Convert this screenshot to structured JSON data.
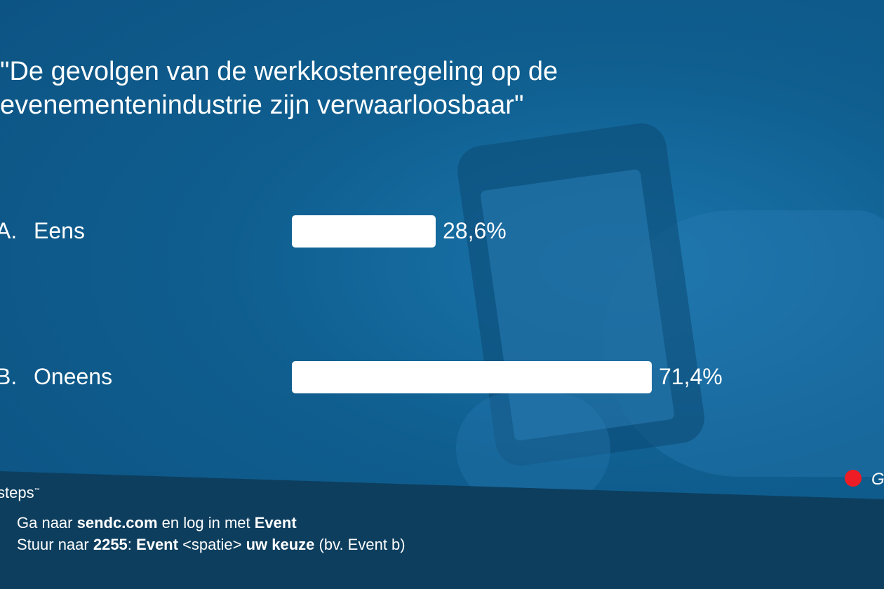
{
  "question": {
    "title": "\"De gevolgen van de werkkostenregeling op de\nevenementenindustrie zijn verwaarloosbaar\""
  },
  "chart_data": {
    "type": "bar",
    "orientation": "horizontal",
    "categories": [
      "Eens",
      "Oneens"
    ],
    "letters": [
      "A.",
      "B."
    ],
    "values": [
      28.6,
      71.4
    ],
    "value_labels": [
      "28,6%",
      "71,4%"
    ],
    "unit": "%",
    "xlim": [
      0,
      100
    ],
    "grid": false,
    "legend": "none",
    "bar_color": "#ffffff"
  },
  "footer": {
    "brand": "steps",
    "line1": {
      "t1": "Ga naar ",
      "b1": "sendc.com",
      "t2": " en log in met ",
      "b2": "Event"
    },
    "line2": {
      "t1": "Stuur naar ",
      "b1": "2255",
      "t2": ": ",
      "b2": "Event",
      "t3": " <spatie> ",
      "b3": "uw keuze",
      "t4": " (bv. Event b)"
    },
    "indicator_label": "G",
    "indicator_color": "#ee1c24"
  }
}
